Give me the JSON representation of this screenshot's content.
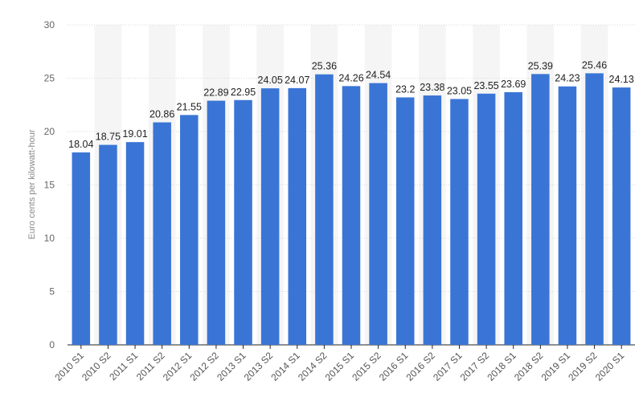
{
  "chart_data": {
    "type": "bar",
    "title": "",
    "xlabel": "",
    "ylabel": "Euro cents per kilowatt-hour",
    "ylim": [
      0,
      30
    ],
    "yticks": [
      0,
      5,
      10,
      15,
      20,
      25,
      30
    ],
    "grid": true,
    "legend": "none",
    "colors": {
      "bar": "#3a75d6",
      "band": "#f5f5f5",
      "grid": "#d9d9d9"
    },
    "categories": [
      "2010 S1",
      "2010 S2",
      "2011 S1",
      "2011 S2",
      "2012 S1",
      "2012 S2",
      "2013 S1",
      "2013 S2",
      "2014 S1",
      "2014 S2",
      "2015 S1",
      "2015 S2",
      "2016 S1",
      "2016 S2",
      "2017 S1",
      "2017 S2",
      "2018 S1",
      "2018 S2",
      "2019 S1",
      "2019 S2",
      "2020 S1"
    ],
    "values": [
      18.04,
      18.75,
      19.01,
      20.86,
      21.55,
      22.89,
      22.95,
      24.05,
      24.07,
      25.36,
      24.26,
      24.54,
      23.2,
      23.38,
      23.05,
      23.55,
      23.69,
      25.39,
      24.23,
      25.46,
      24.13
    ],
    "data_labels": [
      "18.04",
      "18.75",
      "19.01",
      "20.86",
      "21.55",
      "22.89",
      "22.95",
      "24.05",
      "24.07",
      "25.36",
      "24.26",
      "24.54",
      "23.2",
      "23.38",
      "23.05",
      "23.55",
      "23.69",
      "25.39",
      "24.23",
      "25.46",
      "24.13"
    ]
  }
}
